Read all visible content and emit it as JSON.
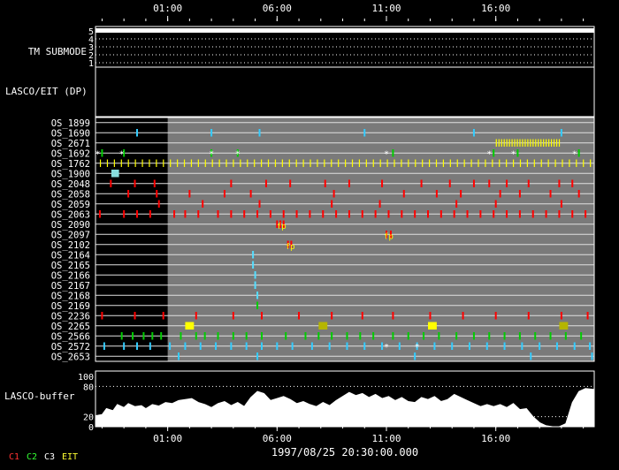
{
  "chart_data": {
    "type": "timeline",
    "time_axis": {
      "ticks": [
        "01:00",
        "06:00",
        "11:00",
        "16:00"
      ],
      "start_hour": -2.3,
      "end_hour": 20.5,
      "timestamp": "1997/08/25 20:30:00.000"
    },
    "tm_submode": {
      "label": "TM SUBMODE",
      "levels": [
        "5",
        "4",
        "3",
        "2",
        "1"
      ],
      "value": 5
    },
    "lasco_eit": {
      "label": "LASCO/EIT (DP)"
    },
    "gray_start_hour": 1.0,
    "rows": [
      {
        "name": "OS_1899",
        "color": "#ff0000",
        "events": []
      },
      {
        "name": "OS_1690",
        "color": "#33ccff",
        "events": [
          -0.4,
          3.0,
          5.2,
          10.0,
          15.0,
          19.0
        ]
      },
      {
        "name": "OS_2671",
        "color": "#ffff00",
        "events": [],
        "band": [
          16.0,
          19.0
        ]
      },
      {
        "name": "OS_1692",
        "color": "#00cc00",
        "events": [
          -2.0,
          -1.0,
          3.0,
          4.2,
          11.3,
          15.9,
          17.0,
          19.8
        ],
        "stars": [
          -2.2,
          -1.1,
          3.0,
          4.2,
          11.0,
          15.7,
          16.8,
          19.6
        ]
      },
      {
        "name": "OS_1762",
        "color": "#ffff00",
        "events": [],
        "regular": 0.32
      },
      {
        "name": "OS_1900",
        "color": "#88dddd",
        "events": [
          -1.4
        ],
        "wide": 0.35
      },
      {
        "name": "OS_2048",
        "color": "#ff0000",
        "events": [
          -1.6,
          -0.5,
          0.4,
          3.9,
          5.5,
          6.6,
          8.2,
          9.3,
          10.8,
          12.6,
          13.9,
          15.0,
          15.7,
          16.5,
          17.5,
          18.9,
          19.5
        ]
      },
      {
        "name": "OS_2058",
        "color": "#ff0000",
        "events": [
          -0.8,
          0.5,
          2.0,
          3.6,
          4.8,
          8.6,
          11.8,
          13.3,
          14.4,
          16.2,
          17.1,
          18.5,
          19.8
        ]
      },
      {
        "name": "OS_2059",
        "color": "#ff0000",
        "events": [
          0.6,
          2.6,
          5.2,
          8.5,
          10.7,
          14.2,
          16.0,
          19.0
        ]
      },
      {
        "name": "OS_2063",
        "color": "#ff0000",
        "events": [
          -2.1,
          -1.0,
          -0.4,
          0.2,
          1.3,
          1.8,
          2.4,
          3.3,
          3.9,
          4.5,
          5.1,
          5.7,
          6.3,
          6.9,
          7.5,
          8.1,
          8.7,
          9.3,
          9.9,
          10.5,
          11.1,
          11.7,
          12.3,
          12.9,
          13.5,
          14.1,
          14.7,
          15.3,
          15.9,
          16.5,
          17.1,
          17.7,
          18.3,
          18.9,
          19.5,
          20.1
        ]
      },
      {
        "name": "OS_2090",
        "color": "#ff0000",
        "events": [
          6.0,
          6.15,
          6.3
        ],
        "fp": [
          6.2
        ]
      },
      {
        "name": "OS_2097",
        "color": "#ff0000",
        "events": [
          11.0,
          11.2
        ],
        "fp": [
          11.1
        ]
      },
      {
        "name": "OS_2102",
        "color": "#ff0000",
        "events": [
          6.5,
          6.65
        ],
        "fp": [
          6.6
        ]
      },
      {
        "name": "OS_2164",
        "color": "#55ddff",
        "events": [
          4.9
        ]
      },
      {
        "name": "OS_2165",
        "color": "#55ddff",
        "events": [
          4.9
        ]
      },
      {
        "name": "OS_2166",
        "color": "#55ddff",
        "events": [
          5.0
        ]
      },
      {
        "name": "OS_2167",
        "color": "#55ddff",
        "events": [
          5.0
        ]
      },
      {
        "name": "OS_2168",
        "color": "#55ddff",
        "events": [
          5.1
        ]
      },
      {
        "name": "OS_2169",
        "color": "#00cc00",
        "events": [
          5.1
        ]
      },
      {
        "name": "OS_2236",
        "color": "#ff0000",
        "events": [
          -2.0,
          -0.5,
          0.8,
          2.3,
          4.0,
          5.3,
          7.0,
          8.5,
          9.9,
          11.3,
          13.0,
          14.5,
          16.0,
          17.5,
          19.0,
          20.2
        ]
      },
      {
        "name": "OS_2265",
        "color": "#ffff00",
        "events": [
          2.0,
          13.1
        ],
        "olive": [
          8.1,
          19.1
        ],
        "wide": 0.4
      },
      {
        "name": "OS_2566",
        "color": "#00cc00",
        "events": [
          -1.1,
          -0.6,
          -0.1,
          0.3,
          0.7,
          1.6,
          2.3,
          2.7,
          3.3,
          4.0,
          4.6,
          5.3,
          6.4,
          7.3,
          7.9,
          8.5,
          9.2,
          9.8,
          10.4,
          11.3,
          12.0,
          12.7,
          13.4,
          14.2,
          15.0,
          15.7,
          16.4,
          17.1,
          17.8,
          18.5,
          19.2,
          19.9
        ]
      },
      {
        "name": "OS_2572",
        "color": "#33ccff",
        "events": [
          -1.9,
          -1.0,
          -0.4,
          0.2,
          1.1,
          1.8,
          2.5,
          3.2,
          3.9,
          4.6,
          5.3,
          6.0,
          6.7,
          7.6,
          8.4,
          9.2,
          10.0,
          10.8,
          11.6,
          12.4,
          13.2,
          14.0,
          14.8,
          15.6,
          16.4,
          17.2,
          18.0,
          18.8,
          19.6,
          20.3
        ],
        "stars": [
          11.0,
          12.4
        ]
      },
      {
        "name": "OS_2653",
        "color": "#33ccff",
        "events": [
          1.5,
          5.1,
          12.3,
          17.6,
          20.4
        ]
      }
    ],
    "lasco_buffer": {
      "label": "LASCO-buffer",
      "yticks": [
        "100",
        "80",
        "20",
        "0"
      ],
      "ylim": [
        0,
        100
      ],
      "x_hours": [
        -2.3,
        -2.0,
        -1.8,
        -1.5,
        -1.3,
        -1.0,
        -0.8,
        -0.5,
        -0.2,
        0.0,
        0.3,
        0.6,
        0.9,
        1.2,
        1.5,
        1.8,
        2.1,
        2.4,
        2.7,
        3.0,
        3.3,
        3.6,
        3.9,
        4.2,
        4.5,
        4.8,
        5.1,
        5.4,
        5.7,
        6.0,
        6.3,
        6.6,
        6.9,
        7.2,
        7.5,
        7.8,
        8.1,
        8.4,
        8.7,
        9.0,
        9.3,
        9.6,
        9.9,
        10.2,
        10.5,
        10.8,
        11.1,
        11.4,
        11.7,
        12.0,
        12.3,
        12.6,
        12.9,
        13.2,
        13.5,
        13.8,
        14.1,
        14.4,
        14.7,
        15.0,
        15.3,
        15.6,
        15.9,
        16.2,
        16.5,
        16.8,
        17.1,
        17.4,
        17.7,
        18.0,
        18.3,
        18.6,
        18.9,
        19.2,
        19.5,
        19.8,
        20.1,
        20.5
      ],
      "values": [
        22,
        24,
        36,
        32,
        44,
        38,
        46,
        40,
        42,
        36,
        44,
        41,
        48,
        46,
        52,
        54,
        56,
        48,
        44,
        38,
        46,
        50,
        42,
        48,
        40,
        58,
        70,
        66,
        52,
        56,
        60,
        54,
        46,
        50,
        44,
        40,
        48,
        42,
        52,
        60,
        68,
        62,
        66,
        58,
        64,
        56,
        60,
        52,
        58,
        50,
        48,
        58,
        54,
        60,
        50,
        54,
        64,
        58,
        52,
        46,
        40,
        44,
        40,
        44,
        38,
        46,
        34,
        36,
        20,
        8,
        2,
        0,
        0,
        6,
        48,
        70,
        76,
        74
      ]
    },
    "legend": [
      {
        "text": "C1",
        "color": "#ff3333"
      },
      {
        "text": "C2",
        "color": "#33ff33"
      },
      {
        "text": "C3",
        "color": "#ffffff"
      },
      {
        "text": "EIT",
        "color": "#ffff33"
      }
    ]
  }
}
